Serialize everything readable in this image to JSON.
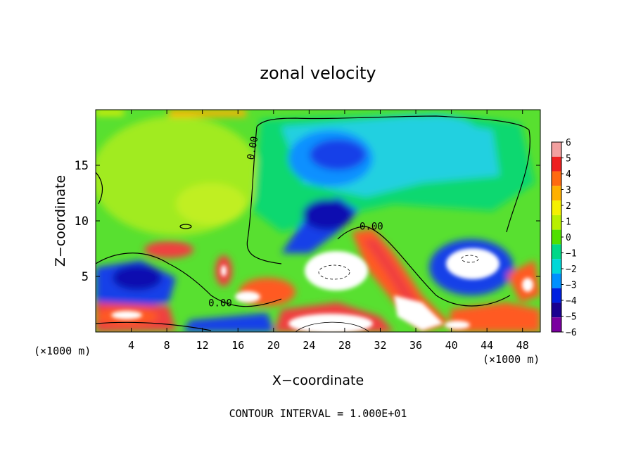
{
  "chart_data": {
    "type": "heatmap",
    "title": "zonal velocity",
    "xlabel": "X−coordinate",
    "ylabel": "Z−coordinate",
    "x_unit_left": "(×1000 m)",
    "x_unit_right": "(×1000 m)",
    "footer": "CONTOUR INTERVAL = 1.000E+01",
    "xlim": [
      0,
      50
    ],
    "ylim": [
      0,
      20
    ],
    "x_ticks": [
      4,
      8,
      12,
      16,
      20,
      24,
      28,
      32,
      36,
      40,
      44,
      48
    ],
    "x_tick_labels": [
      "4",
      "8",
      "12",
      "16",
      "20",
      "24",
      "28",
      "32",
      "36",
      "40",
      "44",
      "48"
    ],
    "y_ticks": [
      5,
      10,
      15
    ],
    "y_tick_labels": [
      "5",
      "10",
      "15"
    ],
    "contour_labels": [
      {
        "text": "0.00",
        "x": 18,
        "y": 16.5,
        "rotate": -80
      },
      {
        "text": "0.00",
        "x": 31,
        "y": 9.2,
        "rotate": 0
      },
      {
        "text": "0.00",
        "x": 14,
        "y": 2.3,
        "rotate": 0
      }
    ],
    "colorbar": {
      "levels": [
        6,
        5,
        4,
        3,
        2,
        1,
        0,
        -1,
        -2,
        -3,
        -4,
        -5,
        -6
      ],
      "labels": [
        "6",
        "5",
        "4",
        "3",
        "2",
        "1",
        "0",
        "−1",
        "−2",
        "−3",
        "−4",
        "−5",
        "−6"
      ],
      "colors": [
        "#f2a0a0",
        "#ee2020",
        "#ff6a10",
        "#ffb000",
        "#f5f000",
        "#b8f000",
        "#50e000",
        "#00d888",
        "#00d8d8",
        "#0090ff",
        "#0020e0",
        "#1a0090",
        "#7a00a0"
      ]
    },
    "field_colors": {
      "pos6": "#ffffff",
      "pos5": "#f04040",
      "pos4": "#ff5a20",
      "pos3": "#ffb000",
      "pos2": "#e8f000",
      "pos1": "#a8ec20",
      "zero": "#58e030",
      "neg1": "#10d870",
      "neg2": "#20d0e0",
      "neg3": "#1090ff",
      "neg4": "#1840e8",
      "neg5": "#1010b0",
      "neg6": "#ffffff"
    }
  }
}
